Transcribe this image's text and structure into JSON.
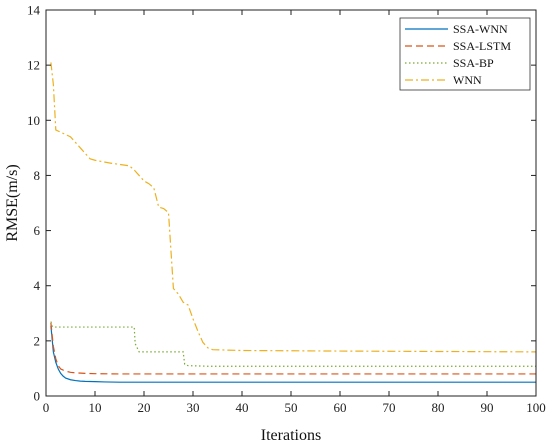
{
  "chart_data": {
    "type": "line",
    "title": "",
    "xlabel": "Iterations",
    "ylabel": "RMSE(m/s)",
    "xlim": [
      0,
      100
    ],
    "ylim": [
      0,
      14
    ],
    "xticks": [
      0,
      10,
      20,
      30,
      40,
      50,
      60,
      70,
      80,
      90,
      100
    ],
    "yticks": [
      0,
      2,
      4,
      6,
      8,
      10,
      12,
      14
    ],
    "grid": false,
    "legend_position": "top-right",
    "series": [
      {
        "name": "SSA-WNN",
        "color": "#0072BD",
        "style": "solid",
        "x": [
          1,
          1.5,
          2,
          2.5,
          3,
          3.5,
          4,
          5,
          6,
          7,
          8,
          10,
          12,
          15,
          20,
          30,
          50,
          100
        ],
        "y": [
          2.55,
          1.6,
          1.22,
          0.98,
          0.82,
          0.72,
          0.65,
          0.59,
          0.56,
          0.54,
          0.53,
          0.52,
          0.51,
          0.5,
          0.5,
          0.5,
          0.5,
          0.5
        ]
      },
      {
        "name": "SSA-LSTM",
        "color": "#D95319",
        "style": "dashed",
        "x": [
          1,
          1.5,
          2,
          2.5,
          3,
          4,
          5,
          6,
          8,
          10,
          15,
          20,
          50,
          100
        ],
        "y": [
          2.65,
          1.8,
          1.35,
          1.1,
          0.98,
          0.9,
          0.86,
          0.84,
          0.82,
          0.81,
          0.8,
          0.8,
          0.8,
          0.8
        ]
      },
      {
        "name": "SSA-BP",
        "color": "#77AC30",
        "style": "dotted",
        "x": [
          1,
          1.3,
          1.6,
          18,
          18.2,
          19,
          28,
          28.3,
          29,
          33,
          100
        ],
        "y": [
          2.7,
          2.52,
          2.5,
          2.5,
          1.9,
          1.6,
          1.6,
          1.15,
          1.1,
          1.08,
          1.08
        ]
      },
      {
        "name": "WNN",
        "color": "#EDB120",
        "style": "dashdot",
        "x": [
          1,
          1.5,
          2,
          5,
          8,
          9,
          10,
          13,
          17,
          18,
          19,
          20,
          21,
          22,
          23,
          24,
          25,
          26,
          27,
          28,
          29,
          30,
          31,
          32,
          33,
          34,
          40,
          60,
          100
        ],
        "y": [
          12.1,
          11.3,
          9.65,
          9.4,
          8.8,
          8.6,
          8.55,
          8.45,
          8.35,
          8.2,
          8.0,
          7.8,
          7.7,
          7.55,
          6.85,
          6.8,
          6.65,
          3.9,
          3.7,
          3.4,
          3.3,
          2.8,
          2.35,
          1.95,
          1.75,
          1.68,
          1.65,
          1.63,
          1.6
        ]
      }
    ]
  }
}
